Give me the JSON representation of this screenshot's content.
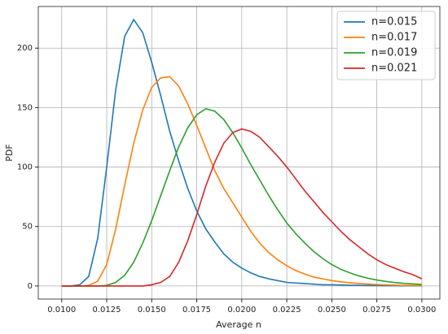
{
  "chart_data": {
    "type": "line",
    "xlabel": "Average n",
    "ylabel": "PDF",
    "x": [
      0.01,
      0.0105,
      0.011,
      0.0115,
      0.012,
      0.0125,
      0.013,
      0.0135,
      0.014,
      0.0145,
      0.015,
      0.0155,
      0.016,
      0.0165,
      0.017,
      0.0175,
      0.018,
      0.0185,
      0.019,
      0.0195,
      0.02,
      0.0205,
      0.021,
      0.0215,
      0.022,
      0.0225,
      0.023,
      0.0235,
      0.024,
      0.0245,
      0.025,
      0.0255,
      0.026,
      0.0265,
      0.027,
      0.0275,
      0.028,
      0.0285,
      0.029,
      0.0295,
      0.03
    ],
    "series": [
      {
        "name": "n=0.015",
        "color": "#1f77b4",
        "values": [
          0,
          0,
          1,
          8,
          40,
          100,
          165,
          210,
          224,
          213,
          188,
          160,
          130,
          105,
          82,
          63,
          48,
          37,
          27,
          20,
          15,
          11,
          8,
          6,
          4.5,
          3,
          2.5,
          2,
          1.5,
          1,
          1,
          0.8,
          0.6,
          0.5,
          0.4,
          0.3,
          0.2,
          0.2,
          0.1,
          0.1,
          0.1
        ]
      },
      {
        "name": "n=0.017",
        "color": "#ff7f0e",
        "values": [
          0,
          0,
          0,
          0.5,
          4,
          18,
          48,
          85,
          120,
          148,
          167,
          175,
          176,
          168,
          153,
          135,
          116,
          97,
          82,
          70,
          58,
          46,
          36,
          28,
          22,
          17,
          13,
          10,
          7.5,
          6,
          4.5,
          3.5,
          2.7,
          2.1,
          1.6,
          1.2,
          0.9,
          0.7,
          0.5,
          0.4,
          0.3
        ]
      },
      {
        "name": "n=0.019",
        "color": "#2ca02c",
        "values": [
          0,
          0,
          0,
          0,
          0,
          0.5,
          3,
          9,
          20,
          36,
          55,
          76,
          97,
          117,
          133,
          144,
          149,
          147,
          140,
          129,
          116,
          102,
          89,
          76,
          64,
          53,
          44,
          36,
          29,
          23,
          18,
          14,
          11,
          8.5,
          6.5,
          5,
          3.8,
          2.9,
          2.2,
          1.7,
          1.3
        ]
      },
      {
        "name": "n=0.021",
        "color": "#d62728",
        "values": [
          0,
          0,
          0,
          0,
          0,
          0,
          0,
          0,
          0,
          0,
          1,
          3,
          8,
          20,
          38,
          60,
          84,
          104,
          120,
          129,
          132,
          130,
          125,
          117,
          109,
          100,
          90,
          80,
          71,
          62,
          54,
          46,
          39,
          33,
          27,
          22,
          18,
          15,
          12,
          9.5,
          6
        ]
      }
    ],
    "xlim": [
      0.0087,
      0.031
    ],
    "ylim": [
      -11,
      235
    ],
    "xticks": [
      {
        "value": 0.01,
        "label": "0.0100"
      },
      {
        "value": 0.0125,
        "label": "0.0125"
      },
      {
        "value": 0.015,
        "label": "0.0150"
      },
      {
        "value": 0.0175,
        "label": "0.0175"
      },
      {
        "value": 0.02,
        "label": "0.0200"
      },
      {
        "value": 0.0225,
        "label": "0.0225"
      },
      {
        "value": 0.025,
        "label": "0.0250"
      },
      {
        "value": 0.0275,
        "label": "0.0275"
      },
      {
        "value": 0.03,
        "label": "0.0300"
      }
    ],
    "yticks": [
      0,
      50,
      100,
      150,
      200
    ],
    "grid": true,
    "legend": "upper-right"
  }
}
